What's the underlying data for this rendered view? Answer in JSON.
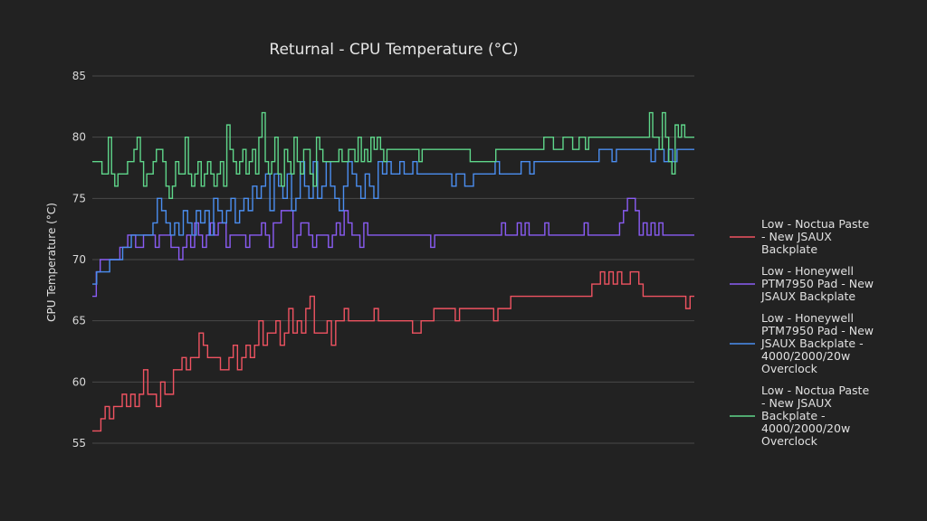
{
  "chart_data": {
    "type": "line",
    "title": "Returnal - CPU Temperature (°C)",
    "xlabel": "",
    "ylabel": "CPU Temperature (°C)",
    "ylim": [
      55,
      85
    ],
    "yticks": [
      55,
      60,
      65,
      70,
      75,
      80,
      85
    ],
    "grid": true,
    "legend_position": "right",
    "line_shape": "step",
    "series": [
      {
        "name": "Low - Noctua Paste - New JSAUX Backplate",
        "color": "#ef5361",
        "values": [
          56,
          56,
          57,
          58,
          57,
          58,
          58,
          59,
          58,
          59,
          58,
          59,
          61,
          59,
          59,
          58,
          60,
          59,
          59,
          61,
          61,
          62,
          61,
          62,
          62,
          64,
          63,
          62,
          62,
          62,
          61,
          61,
          62,
          63,
          61,
          62,
          63,
          62,
          63,
          65,
          63,
          64,
          64,
          65,
          63,
          64,
          66,
          64,
          65,
          64,
          66,
          67,
          64,
          64,
          64,
          65,
          63,
          65,
          65,
          66,
          65,
          65,
          65,
          65,
          65,
          65,
          66,
          65,
          65,
          65,
          65,
          65,
          65,
          65,
          65,
          64,
          64,
          65,
          65,
          65,
          66,
          66,
          66,
          66,
          66,
          65,
          66,
          66,
          66,
          66,
          66,
          66,
          66,
          66,
          65,
          66,
          66,
          66,
          67,
          67,
          67,
          67,
          67,
          67,
          67,
          67,
          67,
          67,
          67,
          67,
          67,
          67,
          67,
          67,
          67,
          67,
          67,
          68,
          68,
          69,
          68,
          69,
          68,
          69,
          68,
          68,
          69,
          69,
          68,
          67,
          67,
          67,
          67,
          67,
          67,
          67,
          67,
          67,
          67,
          66,
          67
        ]
      },
      {
        "name": "Low - Honeywell PTM7950 Pad - New JSAUX Backplate",
        "color": "#8a5cf5",
        "values": [
          67,
          69,
          70,
          70,
          70,
          70,
          70,
          71,
          71,
          72,
          72,
          71,
          71,
          72,
          72,
          72,
          71,
          72,
          72,
          72,
          71,
          71,
          70,
          71,
          72,
          71,
          73,
          72,
          71,
          72,
          73,
          72,
          73,
          73,
          71,
          72,
          72,
          72,
          72,
          71,
          72,
          72,
          72,
          73,
          72,
          71,
          73,
          73,
          74,
          74,
          74,
          71,
          72,
          73,
          73,
          72,
          71,
          72,
          72,
          72,
          71,
          72,
          73,
          72,
          74,
          73,
          72,
          72,
          71,
          73,
          72,
          72,
          72,
          72,
          72,
          72,
          72,
          72,
          72,
          72,
          72,
          72,
          72,
          72,
          72,
          72,
          71,
          72,
          72,
          72,
          72,
          72,
          72,
          72,
          72,
          72,
          72,
          72,
          72,
          72,
          72,
          72,
          72,
          72,
          73,
          72,
          72,
          72,
          73,
          72,
          73,
          72,
          72,
          72,
          72,
          73,
          72,
          72,
          72,
          72,
          72,
          72,
          72,
          72,
          72,
          73,
          72,
          72,
          72,
          72,
          72,
          72,
          72,
          72,
          73,
          74,
          75,
          75,
          74,
          72,
          73,
          72,
          73,
          72,
          73,
          72,
          72,
          72,
          72,
          72,
          72,
          72,
          72
        ]
      },
      {
        "name": "Low - Honeywell PTM7950 Pad - New JSAUX Backplate - 4000/2000/20w Overclock",
        "color": "#4b8ef0",
        "values": [
          68,
          69,
          69,
          69,
          70,
          70,
          70,
          71,
          71,
          72,
          72,
          72,
          72,
          72,
          73,
          75,
          74,
          73,
          72,
          73,
          72,
          74,
          73,
          72,
          74,
          73,
          74,
          72,
          75,
          74,
          73,
          74,
          75,
          73,
          74,
          75,
          74,
          76,
          75,
          76,
          77,
          74,
          77,
          76,
          75,
          77,
          74,
          75,
          78,
          76,
          75,
          78,
          75,
          76,
          78,
          76,
          75,
          74,
          76,
          78,
          77,
          76,
          75,
          77,
          76,
          75,
          78,
          77,
          78,
          77,
          77,
          78,
          77,
          77,
          78,
          77,
          77,
          77,
          77,
          77,
          77,
          77,
          77,
          76,
          77,
          77,
          76,
          76,
          77,
          77,
          77,
          77,
          77,
          78,
          77,
          77,
          77,
          77,
          77,
          78,
          78,
          77,
          78,
          78,
          78,
          78,
          78,
          78,
          78,
          78,
          78,
          78,
          78,
          78,
          78,
          78,
          78,
          79,
          79,
          79,
          78,
          79,
          79,
          79,
          79,
          79,
          79,
          79,
          79,
          78,
          79,
          79,
          78,
          79,
          78,
          79,
          79,
          79,
          79
        ]
      },
      {
        "name": "Low - Noctua Paste - New JSAUX Backplate - 4000/2000/20w Overclock",
        "color": "#5fd68a",
        "values": [
          78,
          78,
          78,
          77,
          77,
          80,
          77,
          76,
          77,
          77,
          77,
          78,
          78,
          79,
          80,
          78,
          76,
          77,
          77,
          78,
          79,
          79,
          78,
          76,
          75,
          76,
          78,
          77,
          77,
          80,
          77,
          76,
          77,
          78,
          76,
          77,
          78,
          77,
          76,
          77,
          78,
          76,
          81,
          79,
          78,
          77,
          78,
          79,
          77,
          78,
          79,
          77,
          80,
          82,
          78,
          77,
          78,
          80,
          77,
          76,
          79,
          78,
          77,
          80,
          78,
          77,
          79,
          79,
          77,
          76,
          80,
          79,
          78,
          78,
          78,
          78,
          78,
          79,
          78,
          78,
          79,
          79,
          78,
          80,
          78,
          79,
          78,
          80,
          79,
          80,
          79,
          78,
          79,
          79,
          79,
          79,
          79,
          79,
          79,
          79,
          79,
          79,
          78,
          79,
          79,
          79,
          79,
          79,
          79,
          79,
          79,
          79,
          79,
          79,
          79,
          79,
          79,
          79,
          78,
          78,
          78,
          78,
          78,
          78,
          78,
          78,
          79,
          79,
          79,
          79,
          79,
          79,
          79,
          79,
          79,
          79,
          79,
          79,
          79,
          79,
          79,
          80,
          80,
          80,
          79,
          79,
          79,
          80,
          80,
          80,
          79,
          79,
          80,
          80,
          79,
          80,
          80,
          80,
          80,
          80,
          80,
          80,
          80,
          80,
          80,
          80,
          80,
          80,
          80,
          80,
          80,
          80,
          80,
          80,
          82,
          80,
          80,
          79,
          82,
          80,
          78,
          77,
          81,
          80,
          81,
          80,
          80,
          80
        ]
      }
    ]
  }
}
